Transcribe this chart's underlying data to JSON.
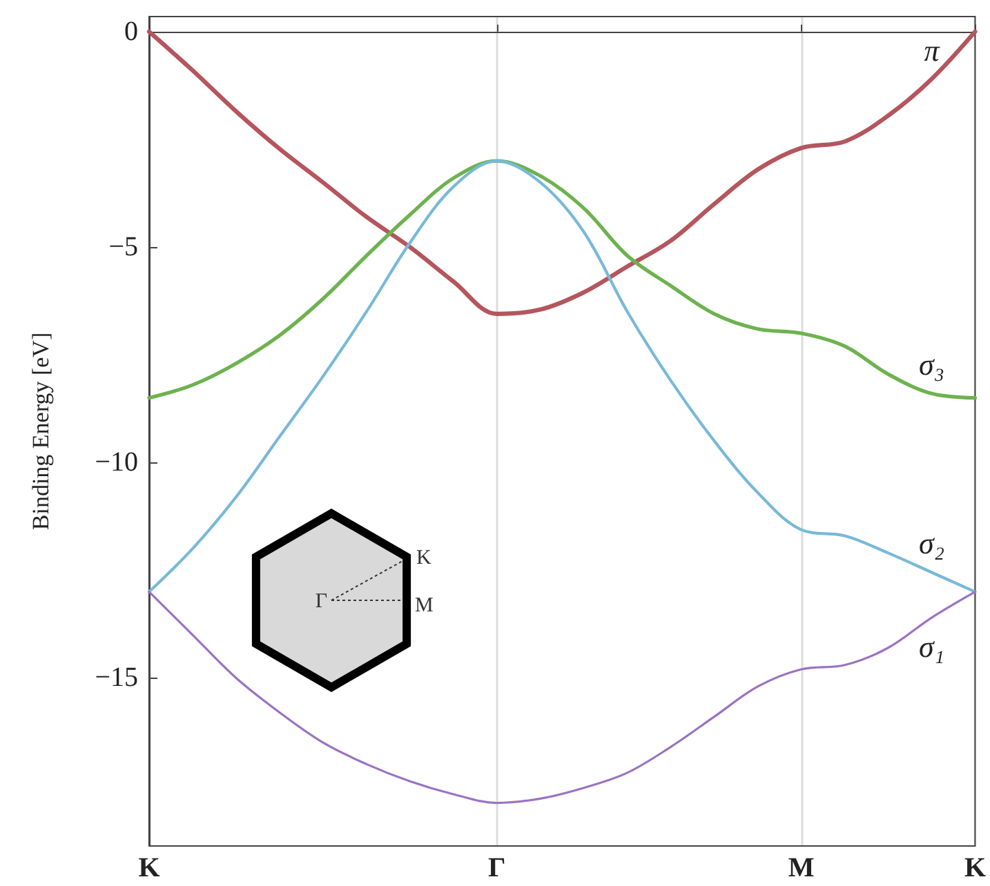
{
  "chart_data": {
    "type": "line",
    "ylabel": "Binding Energy [eV]",
    "categories": [
      "K",
      null,
      null,
      null,
      null,
      null,
      null,
      null,
      "Γ",
      null,
      null,
      null,
      null,
      null,
      null,
      "M",
      null,
      null,
      null,
      "K"
    ],
    "ylim": [
      -18.9,
      0.35
    ],
    "yticks": [
      0,
      -5,
      -10,
      -15
    ],
    "grid": "x",
    "legend": false,
    "marker": "none",
    "line_style": "solid",
    "annotations": [
      "Γ",
      "K",
      "M"
    ],
    "series": [
      {
        "name": "π",
        "color": "#b5555d",
        "values": [
          0,
          -0.9,
          -1.85,
          -2.72,
          -3.5,
          -4.3,
          -5.0,
          -5.8,
          -6.55,
          -6.45,
          -6.05,
          -5.45,
          -4.85,
          -4.0,
          -3.2,
          -2.7,
          -2.55,
          -1.95,
          -1.1,
          0
        ]
      },
      {
        "name": "σ₃",
        "color": "#6db24f",
        "values": [
          -8.5,
          -8.2,
          -7.7,
          -7.05,
          -6.2,
          -5.2,
          -4.25,
          -3.4,
          -3.0,
          -3.35,
          -4.1,
          -5.2,
          -5.9,
          -6.55,
          -6.9,
          -7.0,
          -7.3,
          -7.95,
          -8.4,
          -8.5
        ]
      },
      {
        "name": "σ₂",
        "color": "#78b9d8",
        "values": [
          -13,
          -12.0,
          -10.8,
          -9.4,
          -8.0,
          -6.5,
          -4.9,
          -3.6,
          -3.0,
          -3.5,
          -4.65,
          -6.5,
          -8.1,
          -9.5,
          -10.7,
          -11.56,
          -11.7,
          -12.1,
          -12.55,
          -13
        ]
      },
      {
        "name": "σ₁",
        "color": "#9b72c4",
        "values": [
          -13,
          -14.0,
          -15.0,
          -15.8,
          -16.5,
          -17.0,
          -17.4,
          -17.7,
          -17.9,
          -17.8,
          -17.55,
          -17.2,
          -16.6,
          -15.9,
          -15.2,
          -14.8,
          -14.7,
          -14.3,
          -13.6,
          -13
        ]
      }
    ]
  }
}
